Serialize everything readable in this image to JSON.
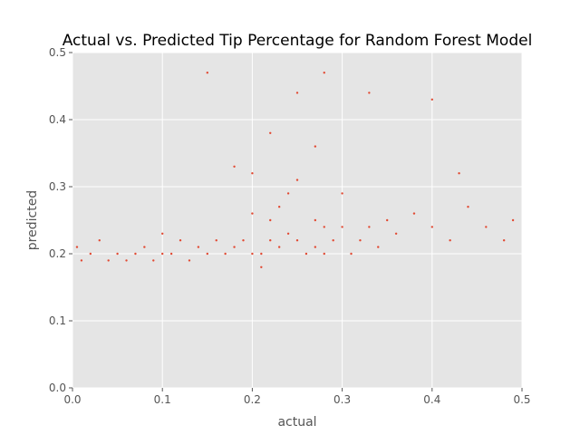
{
  "chart_data": {
    "type": "scatter",
    "title": "Actual vs. Predicted Tip Percentage for Random Forest Model",
    "xlabel": "actual",
    "ylabel": "predicted",
    "xlim": [
      0.0,
      0.5
    ],
    "ylim": [
      0.0,
      0.5
    ],
    "xticks": [
      0.0,
      0.1,
      0.2,
      0.3,
      0.4,
      0.5
    ],
    "yticks": [
      0.0,
      0.1,
      0.2,
      0.3,
      0.4,
      0.5
    ],
    "xtick_labels": [
      "0.0",
      "0.1",
      "0.2",
      "0.3",
      "0.4",
      "0.5"
    ],
    "ytick_labels": [
      "0.0",
      "0.1",
      "0.2",
      "0.3",
      "0.4",
      "0.5"
    ],
    "grid": true,
    "legend": "none",
    "style": {
      "background": "#e5e5e5",
      "marker_color": "#e24a33",
      "grid_color": "#ffffff",
      "text_color": "#555555"
    },
    "series": [
      {
        "points": [
          [
            0.005,
            0.21
          ],
          [
            0.01,
            0.19
          ],
          [
            0.02,
            0.2
          ],
          [
            0.03,
            0.22
          ],
          [
            0.04,
            0.19
          ],
          [
            0.05,
            0.2
          ],
          [
            0.06,
            0.19
          ],
          [
            0.07,
            0.2
          ],
          [
            0.08,
            0.21
          ],
          [
            0.09,
            0.19
          ],
          [
            0.1,
            0.2
          ],
          [
            0.1,
            0.23
          ],
          [
            0.11,
            0.2
          ],
          [
            0.12,
            0.22
          ],
          [
            0.13,
            0.19
          ],
          [
            0.14,
            0.21
          ],
          [
            0.15,
            0.2
          ],
          [
            0.16,
            0.22
          ],
          [
            0.17,
            0.2
          ],
          [
            0.18,
            0.21
          ],
          [
            0.19,
            0.22
          ],
          [
            0.2,
            0.2
          ],
          [
            0.2,
            0.26
          ],
          [
            0.2,
            0.32
          ],
          [
            0.21,
            0.18
          ],
          [
            0.21,
            0.2
          ],
          [
            0.22,
            0.22
          ],
          [
            0.22,
            0.25
          ],
          [
            0.23,
            0.21
          ],
          [
            0.23,
            0.27
          ],
          [
            0.24,
            0.23
          ],
          [
            0.24,
            0.29
          ],
          [
            0.25,
            0.22
          ],
          [
            0.25,
            0.31
          ],
          [
            0.26,
            0.2
          ],
          [
            0.27,
            0.21
          ],
          [
            0.27,
            0.25
          ],
          [
            0.28,
            0.2
          ],
          [
            0.28,
            0.24
          ],
          [
            0.29,
            0.22
          ],
          [
            0.3,
            0.24
          ],
          [
            0.3,
            0.29
          ],
          [
            0.31,
            0.2
          ],
          [
            0.32,
            0.22
          ],
          [
            0.33,
            0.24
          ],
          [
            0.34,
            0.21
          ],
          [
            0.35,
            0.25
          ],
          [
            0.36,
            0.23
          ],
          [
            0.38,
            0.26
          ],
          [
            0.4,
            0.24
          ],
          [
            0.42,
            0.22
          ],
          [
            0.44,
            0.27
          ],
          [
            0.46,
            0.24
          ],
          [
            0.48,
            0.22
          ],
          [
            0.49,
            0.25
          ],
          [
            0.25,
            0.44
          ],
          [
            0.28,
            0.47
          ],
          [
            0.33,
            0.44
          ],
          [
            0.15,
            0.47
          ],
          [
            0.4,
            0.43
          ],
          [
            0.22,
            0.38
          ],
          [
            0.18,
            0.33
          ],
          [
            0.27,
            0.36
          ],
          [
            0.43,
            0.32
          ]
        ]
      }
    ]
  }
}
